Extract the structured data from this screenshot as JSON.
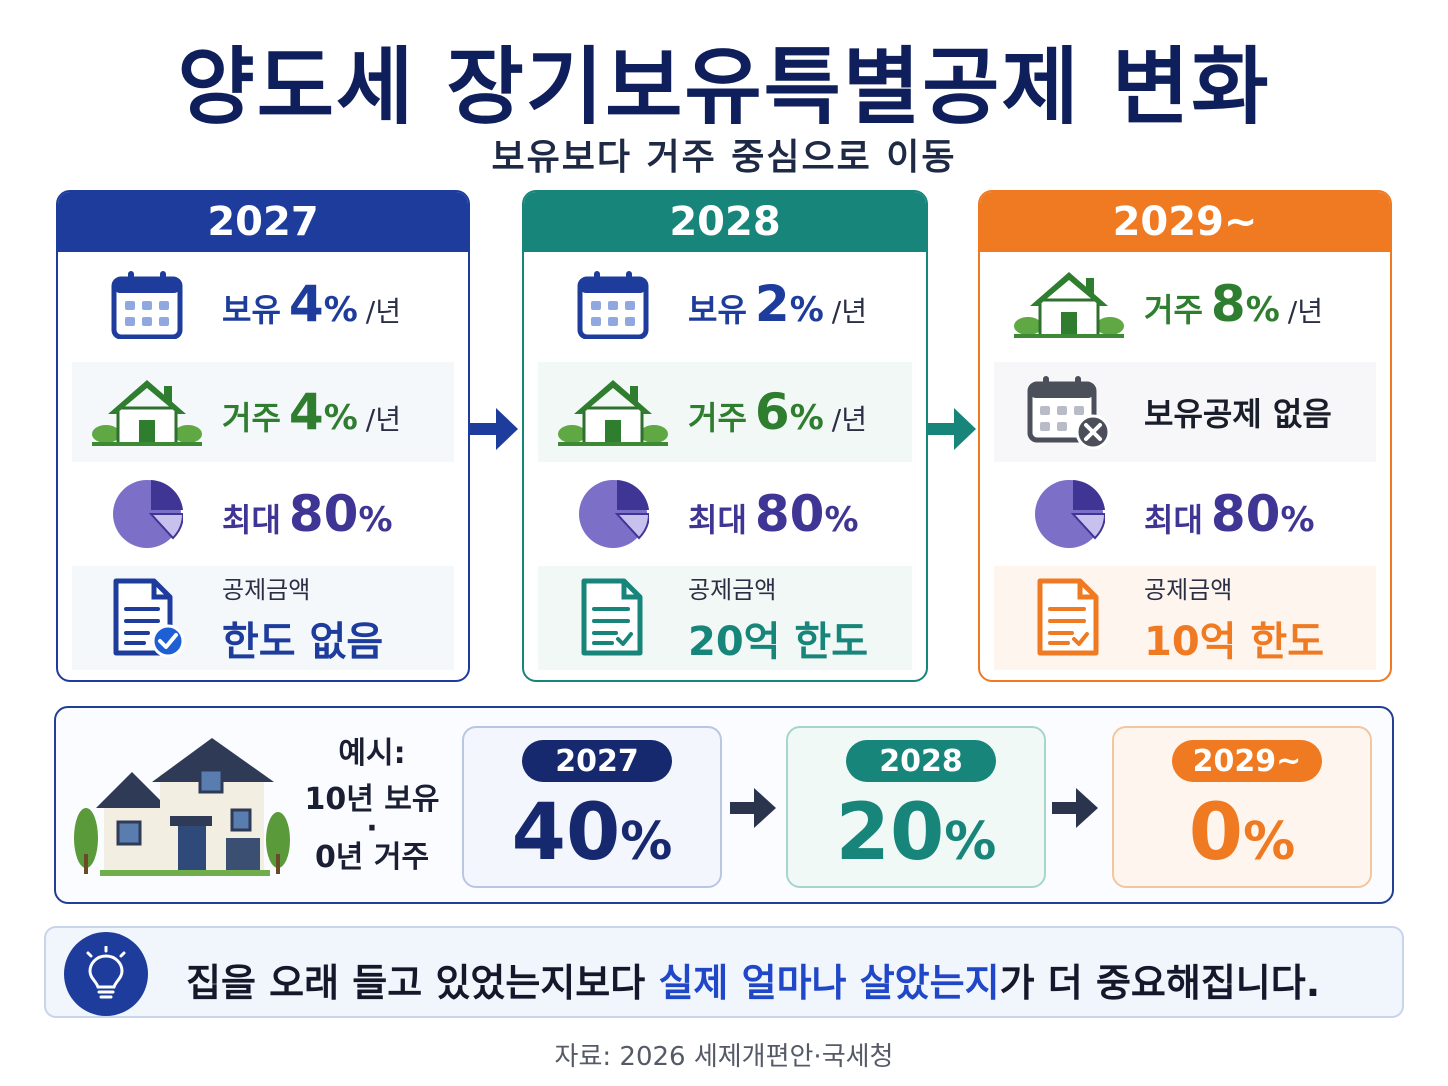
{
  "title": "양도세 장기보유특별공제 변화",
  "subtitle": "보유보다 거주 중심으로 이동",
  "colors": {
    "navy": "#1e3c9c",
    "teal": "#17857a",
    "orange": "#ef7a22",
    "green": "#2f7d2f",
    "purple": "#3f3594"
  },
  "cards": [
    {
      "year": "2027",
      "row1": {
        "label": "보유",
        "value": "4",
        "pct": "%",
        "unit": "/년",
        "icon": "calendar-icon"
      },
      "row2": {
        "label": "거주",
        "value": "4",
        "pct": "%",
        "unit": "/년",
        "icon": "house-icon"
      },
      "row3": {
        "label": "최대",
        "value": "80",
        "pct": "%",
        "icon": "pie-chart-icon"
      },
      "row4": {
        "label": "공제금액",
        "value": "한도 없음",
        "icon": "document-check-icon"
      }
    },
    {
      "year": "2028",
      "row1": {
        "label": "보유",
        "value": "2",
        "pct": "%",
        "unit": "/년",
        "icon": "calendar-icon"
      },
      "row2": {
        "label": "거주",
        "value": "6",
        "pct": "%",
        "unit": "/년",
        "icon": "house-icon"
      },
      "row3": {
        "label": "최대",
        "value": "80",
        "pct": "%",
        "icon": "pie-chart-icon"
      },
      "row4": {
        "label": "공제금액",
        "value": "20억 한도",
        "icon": "document-icon"
      }
    },
    {
      "year": "2029~",
      "row1": {
        "label": "거주",
        "value": "8",
        "pct": "%",
        "unit": "/년",
        "icon": "house-icon"
      },
      "row2": {
        "label": "보유공제 없음",
        "icon": "calendar-x-icon"
      },
      "row3": {
        "label": "최대",
        "value": "80",
        "pct": "%",
        "icon": "pie-chart-icon"
      },
      "row4": {
        "label": "공제금액",
        "value": "10억 한도",
        "icon": "document-icon"
      }
    }
  ],
  "example": {
    "label": "예시:",
    "line1": "10년 보유",
    "dot": "·",
    "line2": "0년 거주",
    "icon": "house-illustration",
    "items": [
      {
        "year": "2027",
        "value": "40",
        "pct": "%"
      },
      {
        "year": "2028",
        "value": "20",
        "pct": "%"
      },
      {
        "year": "2029~",
        "value": "0",
        "pct": "%"
      }
    ]
  },
  "tip": {
    "text_before": "집을 오래 들고 있었는지보다 ",
    "highlight": "실제 얼마나 살았는지",
    "text_after": "가 더 중요해집니다.",
    "icon": "lightbulb-icon"
  },
  "source": "자료: 2026 세제개편안·국세청"
}
